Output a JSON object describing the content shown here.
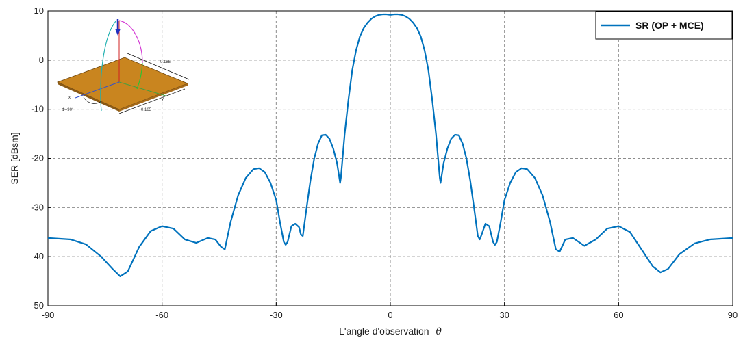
{
  "chart_data": {
    "type": "line",
    "title": "",
    "xlabel": "L'angle d'observation",
    "xlabel_symbol": "θ",
    "ylabel": "SER [dBsm]",
    "xlim": [
      -90,
      90
    ],
    "ylim": [
      -50,
      10
    ],
    "xticks": [
      -90,
      -60,
      -30,
      0,
      30,
      60,
      90
    ],
    "yticks": [
      -50,
      -40,
      -30,
      -20,
      -10,
      0,
      10
    ],
    "grid": true,
    "legend_position": "top-right",
    "series": [
      {
        "name": "SR (OP + MCE)",
        "color": "#0072bd",
        "x": [
          -90,
          -84,
          -80,
          -76,
          -73,
          -71,
          -69,
          -66,
          -63,
          -60,
          -57,
          -54,
          -51,
          -48,
          -46,
          -44.5,
          -43.5,
          -42,
          -40,
          -38,
          -36,
          -34.5,
          -33,
          -31.5,
          -30,
          -29,
          -28,
          -27.5,
          -27,
          -26,
          -25,
          -24,
          -23.5,
          -23,
          -22,
          -21,
          -20,
          -19,
          -18,
          -17,
          -16,
          -15,
          -14,
          -13.2,
          -13,
          -12,
          -11,
          -10,
          -9,
          -8,
          -7,
          -6,
          -5,
          -4,
          -3,
          -2,
          -1,
          0,
          1,
          2,
          3,
          4,
          5,
          6,
          7,
          8,
          9,
          10,
          11,
          12,
          13,
          13.2,
          14,
          15,
          16,
          17,
          18,
          19,
          20,
          21,
          22,
          23,
          23.5,
          24,
          25,
          26,
          27,
          27.5,
          28,
          29,
          30,
          31.5,
          33,
          34.5,
          36,
          38,
          40,
          42,
          43.5,
          44.5,
          46,
          48,
          51,
          54,
          57,
          60,
          63,
          66,
          69,
          71,
          73,
          76,
          80,
          84,
          90
        ],
        "y": [
          -36.2,
          -36.5,
          -37.5,
          -40.0,
          -42.5,
          -44.0,
          -43.0,
          -38.0,
          -34.8,
          -33.8,
          -34.3,
          -36.5,
          -37.2,
          -36.2,
          -36.5,
          -38.0,
          -38.5,
          -33.0,
          -27.5,
          -24.0,
          -22.2,
          -22.0,
          -22.8,
          -25.0,
          -28.5,
          -33.0,
          -37.0,
          -37.6,
          -37.0,
          -33.8,
          -33.3,
          -34.0,
          -35.5,
          -35.8,
          -30.0,
          -24.5,
          -20.0,
          -17.0,
          -15.3,
          -15.2,
          -16.0,
          -18.0,
          -21.0,
          -25.0,
          -24.0,
          -15.0,
          -8.0,
          -2.0,
          2.0,
          4.8,
          6.5,
          7.6,
          8.4,
          8.9,
          9.2,
          9.3,
          9.3,
          9.2,
          9.3,
          9.3,
          9.2,
          8.9,
          8.4,
          7.6,
          6.5,
          4.8,
          2.0,
          -2.0,
          -8.0,
          -15.0,
          -24.0,
          -25.0,
          -21.0,
          -18.0,
          -16.0,
          -15.2,
          -15.3,
          -17.0,
          -20.0,
          -24.5,
          -30.0,
          -35.8,
          -36.5,
          -35.5,
          -33.3,
          -33.8,
          -37.0,
          -37.6,
          -37.0,
          -33.0,
          -28.5,
          -25.0,
          -22.8,
          -22.0,
          -22.2,
          -24.0,
          -27.5,
          -33.0,
          -38.5,
          -39.0,
          -36.5,
          -36.2,
          -37.8,
          -36.5,
          -34.3,
          -33.8,
          -35.0,
          -38.5,
          -42.0,
          -43.2,
          -42.5,
          -39.5,
          -37.3,
          -36.5,
          -36.2
        ]
      }
    ]
  },
  "inset": {
    "dim_top": "0.185",
    "dim_side": "0.165",
    "angle_label": "Φ=90°",
    "axis_x": "x",
    "axis_y": "y",
    "plate_color": "#c9851f"
  }
}
